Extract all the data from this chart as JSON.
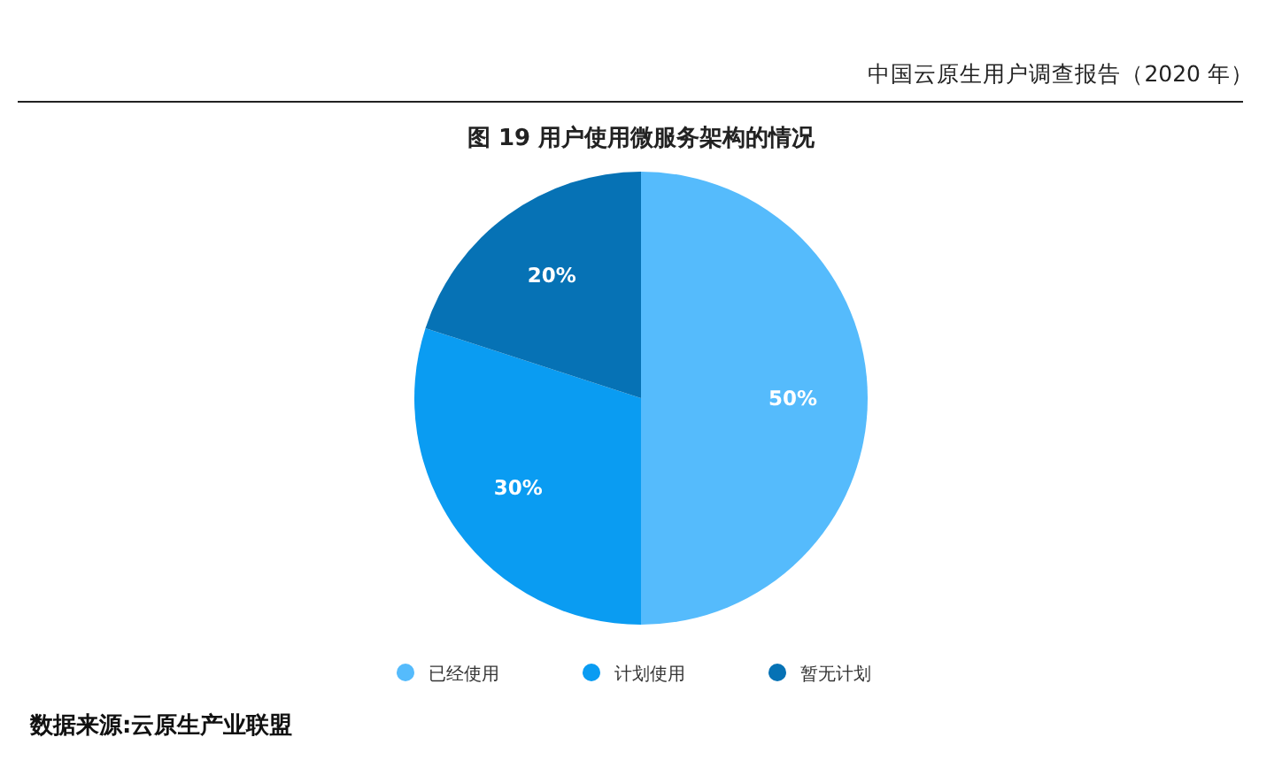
{
  "chart_data": {
    "type": "pie",
    "title": "图 19  用户使用微服务架构的情况",
    "categories": [
      "已经使用",
      "计划使用",
      "暂无计划"
    ],
    "values": [
      50,
      30,
      20
    ],
    "colors": [
      "#55bbfc",
      "#0a9cf2",
      "#0672b5"
    ],
    "value_labels": [
      "50%",
      "30%",
      "20%"
    ],
    "legend": "bottom",
    "annotations": [
      "中国云原生用户调查报告（2020 年）",
      "数据来源:云原生产业联盟"
    ]
  }
}
